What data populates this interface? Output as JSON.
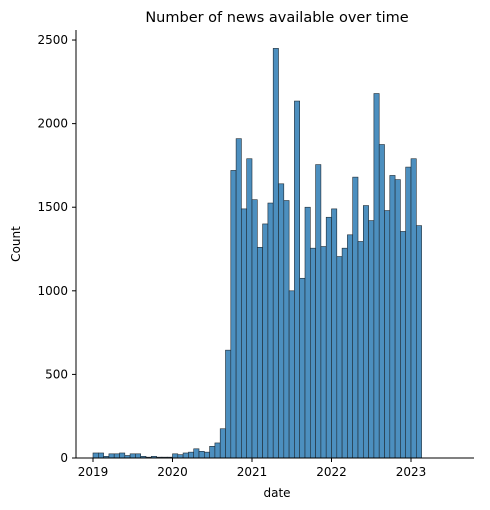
{
  "chart_data": {
    "type": "bar",
    "title": "Number of news available over time",
    "xlabel": "date",
    "ylabel": "Count",
    "x_ticks": [
      "2019",
      "2020",
      "2021",
      "2022",
      "2023"
    ],
    "y_ticks": [
      "0",
      "500",
      "1000",
      "1500",
      "2000",
      "2500"
    ],
    "ylim": [
      0,
      2560
    ],
    "xlim": [
      "2018-11",
      "2023-10"
    ],
    "grid": false,
    "bar_color": "#4c8fbf",
    "edge_color": "#1f2a33",
    "bin_start": "2019-01-01",
    "bin_width_months": 0.8,
    "values": [
      30,
      30,
      10,
      25,
      25,
      30,
      15,
      25,
      25,
      10,
      5,
      10,
      5,
      5,
      5,
      25,
      20,
      30,
      35,
      55,
      40,
      35,
      70,
      90,
      175,
      645,
      1720,
      1910,
      1490,
      1790,
      1545,
      1260,
      1400,
      1525,
      2450,
      1640,
      1540,
      1000,
      2135,
      1075,
      1500,
      1255,
      1755,
      1265,
      1440,
      1490,
      1205,
      1255,
      1335,
      1680,
      1295,
      1510,
      1420,
      2180,
      1875,
      1480,
      1690,
      1665,
      1355,
      1740,
      1790,
      1390
    ]
  }
}
